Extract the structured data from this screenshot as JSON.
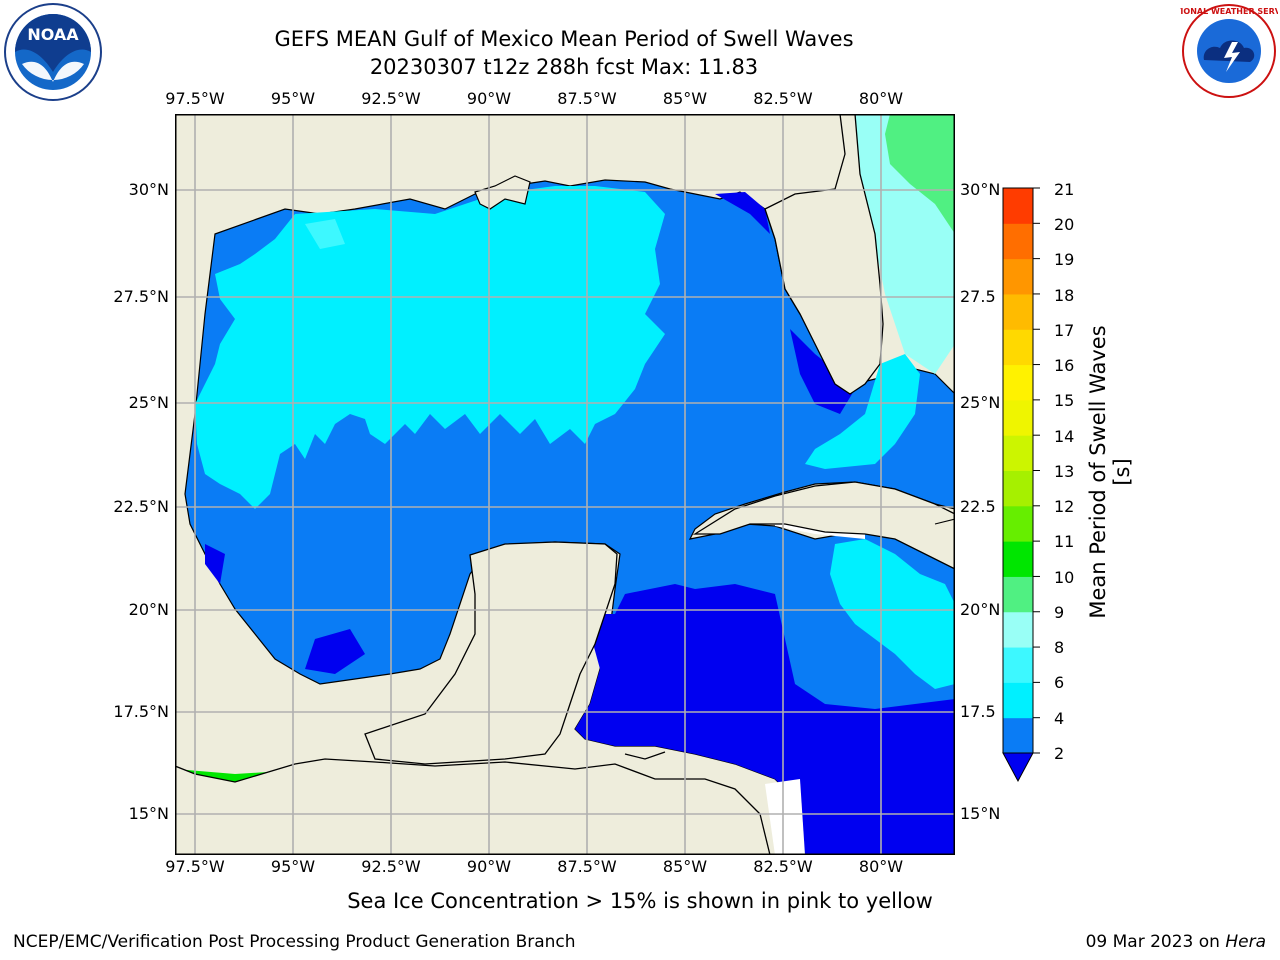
{
  "title": {
    "line1": "GEFS MEAN Gulf of Mexico Mean Period of Swell Waves",
    "line2": "20230307 t12z 288h fcst   Max: 11.83"
  },
  "map": {
    "lon_labels": [
      "97.5°W",
      "95°W",
      "92.5°W",
      "90°W",
      "87.5°W",
      "85°W",
      "82.5°W",
      "80°W"
    ],
    "lat_labels_left": [
      "30°N",
      "27.5°N",
      "25°N",
      "22.5°N",
      "20°N",
      "17.5°N",
      "15°N"
    ],
    "lat_labels_right": [
      "30°N",
      "27.5",
      "25°N",
      "22.5",
      "20°N",
      "17.5",
      "15°N"
    ],
    "extent": {
      "lon": [
        -98,
        -78
      ],
      "lat": [
        14,
        31.6
      ]
    },
    "land_color": "#eeeddc",
    "grid_color": "#b0b0b0"
  },
  "colorbar": {
    "label": "Mean Period of Swell Waves [s]",
    "ticks": [
      "2",
      "4",
      "6",
      "8",
      "9",
      "10",
      "11",
      "12",
      "13",
      "14",
      "15",
      "16",
      "17",
      "18",
      "19",
      "20",
      "21"
    ],
    "colors": [
      "#0a7cf5",
      "#00f0ff",
      "#3df8ff",
      "#99fff6",
      "#50f082",
      "#00e600",
      "#66ee00",
      "#a6f000",
      "#ccf500",
      "#eff500",
      "#fff200",
      "#ffd900",
      "#ffbb00",
      "#ff9600",
      "#ff6e00",
      "#ff3c00",
      "#ff0000"
    ],
    "under_color": "#0000f0"
  },
  "footer": {
    "note": "Sea Ice Concentration > 15% is shown in pink to yellow",
    "left_credit": "NCEP/EMC/Verification Post Processing Product Generation Branch",
    "right_credit_date": "09 Mar 2023 on ",
    "right_credit_host": "Hera"
  },
  "logos": {
    "noaa_text": "NOAA",
    "nws_text": "NATIONAL WEATHER SERVICE"
  }
}
